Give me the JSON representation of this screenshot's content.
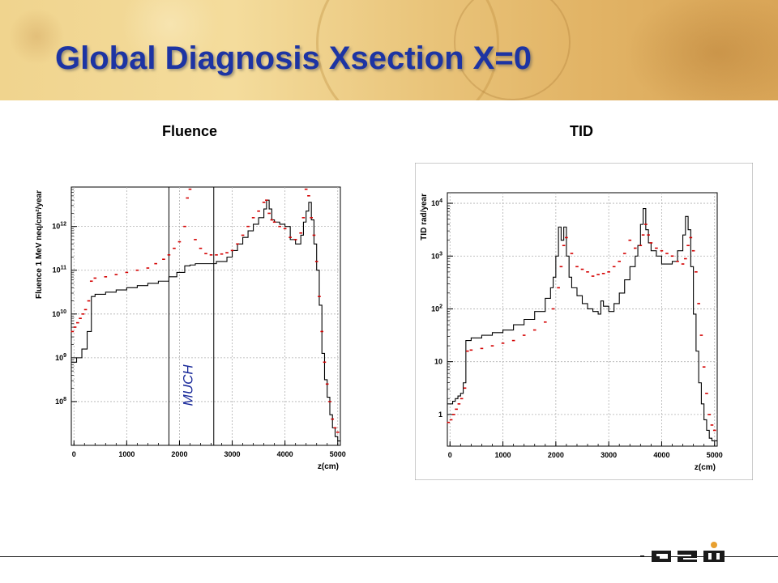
{
  "slide": {
    "title": "Global Diagnosis Xsection X=0",
    "footer_logo": "GSI",
    "colors": {
      "title": "#1d34a3",
      "banner": "#e9c47a",
      "red_series": "#d40000",
      "black_series": "#000000"
    }
  },
  "chart_data": [
    {
      "type": "line",
      "title": "Fluence",
      "xlabel": "z(cm)",
      "ylabel": "Fluence 1 MeV neq/cm²/year",
      "xlim": [
        -50,
        5050
      ],
      "ylim_log10": [
        7.0,
        12.9
      ],
      "ylog": true,
      "grid": true,
      "x_ticks": [
        "0",
        "1000",
        "2000",
        "3000",
        "4000",
        "5000"
      ],
      "y_ticks": [
        {
          "base": "10",
          "exp": "8",
          "log": 8
        },
        {
          "base": "10",
          "exp": "9",
          "log": 9
        },
        {
          "base": "10",
          "exp": "10",
          "log": 10
        },
        {
          "base": "10",
          "exp": "11",
          "log": 11
        },
        {
          "base": "10",
          "exp": "12",
          "log": 12
        }
      ],
      "annotation": {
        "text": "MUCH",
        "x_start": 1800,
        "x_end": 2650
      },
      "series": [
        {
          "color": "#000000",
          "style": "step",
          "x": [
            -50,
            50,
            150,
            250,
            330,
            400,
            600,
            800,
            1000,
            1200,
            1400,
            1600,
            1800,
            1950,
            2100,
            2200,
            2300,
            2500,
            2700,
            2900,
            3000,
            3100,
            3200,
            3300,
            3400,
            3500,
            3600,
            3650,
            3700,
            3750,
            3800,
            3900,
            4000,
            4100,
            4200,
            4300,
            4350,
            4400,
            4450,
            4500,
            4550,
            4600,
            4650,
            4700,
            4750,
            4800,
            4850,
            4900,
            4950,
            5000,
            5050
          ],
          "y": [
            8.9,
            9.0,
            9.2,
            9.6,
            10.4,
            10.45,
            10.5,
            10.55,
            10.6,
            10.65,
            10.7,
            10.75,
            10.85,
            10.95,
            11.1,
            11.12,
            11.15,
            11.15,
            11.2,
            11.3,
            11.45,
            11.6,
            11.75,
            11.9,
            12.05,
            12.2,
            12.4,
            12.6,
            12.4,
            12.15,
            12.1,
            12.05,
            12.0,
            11.7,
            11.6,
            11.8,
            12.1,
            12.35,
            12.55,
            12.15,
            11.6,
            11.0,
            10.2,
            9.1,
            8.5,
            8.1,
            7.7,
            7.4,
            7.2,
            7.1,
            7.1
          ]
        },
        {
          "color": "#d40000",
          "style": "markers",
          "x": [
            -30,
            20,
            70,
            120,
            170,
            220,
            280,
            330,
            400,
            600,
            800,
            1000,
            1200,
            1400,
            1550,
            1700,
            1800,
            1900,
            2000,
            2100,
            2150,
            2200,
            2300,
            2400,
            2500,
            2600,
            2700,
            2800,
            2900,
            3000,
            3100,
            3200,
            3300,
            3400,
            3500,
            3600,
            3650,
            3700,
            3750,
            3800,
            3900,
            4000,
            4100,
            4200,
            4300,
            4350,
            4400,
            4450,
            4500,
            4550,
            4600,
            4650,
            4700,
            4750,
            4800,
            4850,
            4900,
            4950,
            5000
          ],
          "y": [
            9.6,
            9.7,
            9.8,
            9.9,
            10.0,
            10.1,
            10.3,
            10.75,
            10.82,
            10.85,
            10.9,
            10.95,
            11.0,
            11.05,
            11.15,
            11.25,
            11.35,
            11.5,
            11.65,
            12.0,
            12.65,
            12.85,
            11.7,
            11.5,
            11.38,
            11.35,
            11.35,
            11.37,
            11.4,
            11.45,
            11.6,
            11.8,
            12.0,
            12.2,
            12.35,
            12.55,
            12.6,
            12.3,
            12.15,
            12.1,
            12.0,
            11.95,
            11.75,
            11.7,
            11.85,
            12.2,
            12.85,
            12.7,
            12.2,
            11.8,
            11.2,
            10.4,
            9.6,
            8.9,
            8.4,
            8.0,
            7.6,
            7.4,
            7.3
          ]
        }
      ]
    },
    {
      "type": "line",
      "title": "TID",
      "xlabel": "z(cm)",
      "ylabel": "TID rad/year",
      "xlim": [
        -50,
        5050
      ],
      "ylim_log10": [
        -0.6,
        4.2
      ],
      "ylog": true,
      "grid": true,
      "x_ticks": [
        "0",
        "1000",
        "2000",
        "3000",
        "4000",
        "5000"
      ],
      "y_ticks": [
        {
          "base": "1",
          "exp": "",
          "log": 0
        },
        {
          "base": "10",
          "exp": "",
          "log": 1
        },
        {
          "base": "10",
          "exp": "2",
          "log": 2
        },
        {
          "base": "10",
          "exp": "3",
          "log": 3
        },
        {
          "base": "10",
          "exp": "4",
          "log": 4
        }
      ],
      "series": [
        {
          "color": "#000000",
          "style": "step",
          "x": [
            -50,
            50,
            100,
            150,
            200,
            250,
            300,
            400,
            600,
            800,
            1000,
            1200,
            1400,
            1600,
            1800,
            1900,
            1950,
            2000,
            2050,
            2100,
            2150,
            2200,
            2250,
            2300,
            2400,
            2500,
            2600,
            2700,
            2800,
            2850,
            2900,
            3000,
            3100,
            3200,
            3300,
            3400,
            3500,
            3550,
            3600,
            3650,
            3700,
            3750,
            3800,
            3900,
            4000,
            4100,
            4200,
            4300,
            4400,
            4450,
            4500,
            4550,
            4600,
            4650,
            4700,
            4750,
            4800,
            4850,
            4900,
            4950,
            5000
          ],
          "y": [
            0.2,
            0.25,
            0.3,
            0.35,
            0.4,
            0.6,
            1.4,
            1.45,
            1.5,
            1.55,
            1.6,
            1.7,
            1.8,
            1.95,
            2.2,
            2.4,
            2.6,
            3.0,
            3.55,
            3.3,
            3.55,
            3.0,
            2.6,
            2.4,
            2.25,
            2.1,
            2.0,
            1.95,
            1.9,
            2.15,
            2.05,
            1.95,
            2.1,
            2.3,
            2.55,
            2.8,
            3.0,
            3.2,
            3.6,
            3.9,
            3.5,
            3.25,
            3.1,
            3.0,
            2.85,
            2.85,
            2.9,
            3.1,
            3.4,
            3.75,
            3.5,
            2.8,
            1.9,
            1.2,
            0.6,
            0.2,
            -0.1,
            -0.3,
            -0.45,
            -0.5,
            -0.5
          ]
        },
        {
          "color": "#d40000",
          "style": "markers",
          "x": [
            -30,
            20,
            70,
            120,
            170,
            220,
            280,
            330,
            400,
            600,
            800,
            1000,
            1200,
            1400,
            1600,
            1800,
            1950,
            2050,
            2100,
            2150,
            2200,
            2300,
            2400,
            2500,
            2600,
            2700,
            2800,
            2900,
            3000,
            3100,
            3200,
            3300,
            3400,
            3500,
            3600,
            3650,
            3700,
            3750,
            3800,
            3900,
            4000,
            4100,
            4200,
            4300,
            4400,
            4450,
            4500,
            4550,
            4600,
            4650,
            4700,
            4750,
            4800,
            4850,
            4900,
            4950,
            5000
          ],
          "y": [
            -0.15,
            -0.1,
            0.0,
            0.1,
            0.2,
            0.3,
            0.5,
            1.2,
            1.22,
            1.25,
            1.3,
            1.35,
            1.4,
            1.5,
            1.6,
            1.75,
            2.0,
            2.4,
            2.8,
            3.2,
            3.35,
            3.05,
            2.8,
            2.75,
            2.7,
            2.62,
            2.65,
            2.67,
            2.7,
            2.8,
            2.9,
            3.05,
            3.3,
            3.15,
            3.2,
            3.4,
            3.6,
            3.4,
            3.25,
            3.15,
            3.1,
            3.05,
            3.0,
            2.9,
            2.85,
            2.95,
            3.2,
            3.35,
            3.1,
            2.7,
            2.1,
            1.5,
            0.9,
            0.4,
            0.0,
            -0.2,
            -0.3
          ]
        }
      ]
    }
  ]
}
